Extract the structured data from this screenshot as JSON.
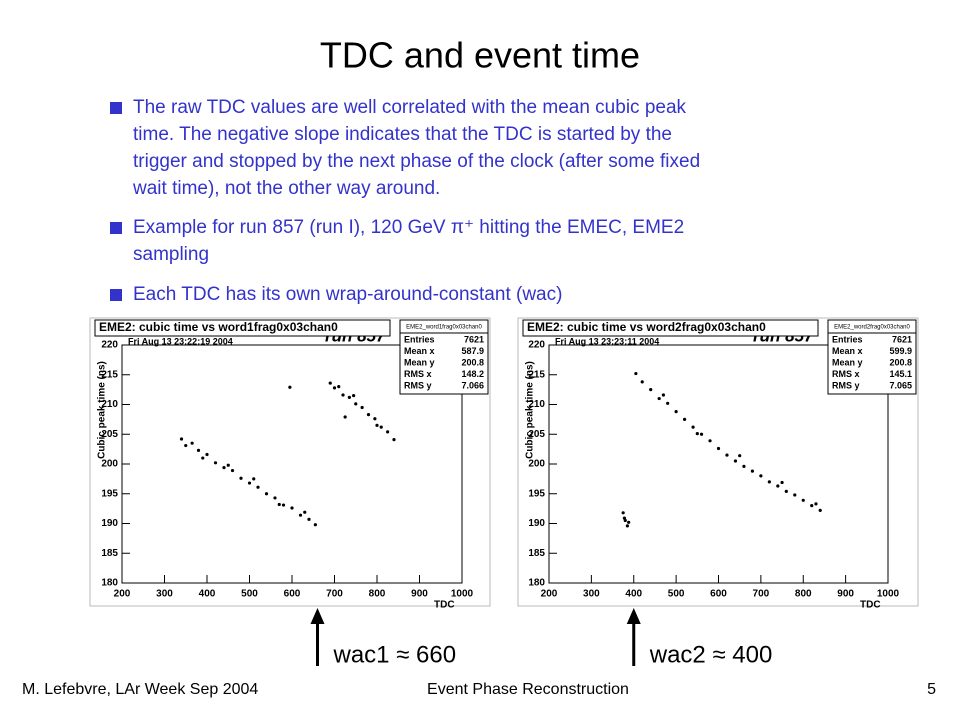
{
  "slide": {
    "title": "TDC and event time",
    "bullets": [
      [
        "The raw TDC values are well correlated with the mean cubic peak",
        "time.  The negative slope indicates that the TDC is started by the",
        "trigger and stopped by the next phase of the clock (after some fixed",
        "wait time), not the other way around."
      ],
      [
        "Example for run 857 (run I), 120 GeV π⁺ hitting the EMEC, EME2",
        "sampling"
      ],
      [
        "Each TDC has its own wrap-around-constant (wac)"
      ]
    ],
    "footer": {
      "left": "M. Lefebvre, LAr Week Sep 2004",
      "center": "Event Phase Reconstruction",
      "page": "5"
    }
  },
  "chart_data": [
    {
      "type": "scatter",
      "title": "EME2: cubic time vs word1frag0x03chan0",
      "date": "Fri Aug 13 23:22:19 2004",
      "run_label": "run 857",
      "stats_title": "EME2_word1frag0x03chan0",
      "stats": [
        {
          "label": "Entries",
          "value": 7621
        },
        {
          "label": "Mean x",
          "value": 587.9
        },
        {
          "label": "Mean y",
          "value": 200.8
        },
        {
          "label": "RMS x",
          "value": 148.2
        },
        {
          "label": "RMS y",
          "value": 7.066
        }
      ],
      "x_label": "TDC",
      "y_label": "Cubic peak time (ns)",
      "color": "#000000",
      "xlim": [
        200,
        1000
      ],
      "ylim": [
        180,
        220
      ],
      "xticks": [
        200,
        300,
        400,
        500,
        600,
        700,
        800,
        900,
        1000
      ],
      "yticks": [
        180,
        185,
        190,
        195,
        200,
        205,
        210,
        215,
        220
      ],
      "x": [
        340,
        350,
        365,
        380,
        390,
        400,
        420,
        440,
        450,
        460,
        480,
        500,
        510,
        520,
        540,
        560,
        570,
        580,
        600,
        620,
        630,
        640,
        655,
        690,
        700,
        710,
        720,
        735,
        745,
        750,
        765,
        780,
        795,
        800,
        810,
        825,
        840,
        595,
        725
      ],
      "values": [
        204.2,
        203.1,
        203.5,
        202.3,
        201.0,
        201.6,
        200.2,
        199.4,
        199.8,
        198.9,
        197.6,
        196.8,
        197.5,
        196.1,
        195.0,
        194.3,
        193.2,
        193.1,
        192.6,
        191.4,
        191.9,
        190.7,
        189.8,
        213.6,
        212.8,
        213.0,
        211.6,
        211.2,
        211.5,
        210.1,
        209.5,
        208.3,
        207.6,
        206.5,
        206.2,
        205.4,
        204.1,
        212.9,
        207.9
      ],
      "wac": {
        "label": "wac1 ≈ 660",
        "value": 660
      }
    },
    {
      "type": "scatter",
      "title": "EME2: cubic time vs word2frag0x03chan0",
      "date": "Fri Aug 13 23:23:11 2004",
      "run_label": "run 857",
      "stats_title": "EME2_word2frag0x03chan0",
      "stats": [
        {
          "label": "Entries",
          "value": 7621
        },
        {
          "label": "Mean x",
          "value": 599.9
        },
        {
          "label": "Mean y",
          "value": 200.8
        },
        {
          "label": "RMS x",
          "value": 145.1
        },
        {
          "label": "RMS y",
          "value": 7.065
        }
      ],
      "x_label": "TDC",
      "y_label": "Cubic peak time (ns)",
      "color": "#000000",
      "xlim": [
        200,
        1000
      ],
      "ylim": [
        180,
        220
      ],
      "xticks": [
        200,
        300,
        400,
        500,
        600,
        700,
        800,
        900,
        1000
      ],
      "yticks": [
        180,
        185,
        190,
        195,
        200,
        205,
        210,
        215,
        220
      ],
      "x": [
        405,
        420,
        440,
        460,
        470,
        480,
        500,
        520,
        540,
        550,
        560,
        580,
        600,
        620,
        640,
        650,
        660,
        680,
        700,
        720,
        740,
        750,
        760,
        780,
        800,
        820,
        830,
        840,
        375,
        378,
        380,
        385,
        388
      ],
      "values": [
        215.2,
        213.8,
        212.5,
        211.0,
        211.6,
        210.2,
        208.8,
        207.5,
        206.2,
        205.1,
        205.0,
        203.9,
        202.6,
        201.5,
        200.5,
        201.4,
        199.6,
        198.8,
        198.0,
        197.0,
        196.3,
        196.9,
        195.4,
        194.8,
        193.9,
        193.0,
        193.3,
        192.2,
        191.8,
        190.9,
        190.5,
        189.6,
        190.2
      ],
      "wac": {
        "label": "wac2 ≈ 400",
        "value": 400
      }
    }
  ]
}
